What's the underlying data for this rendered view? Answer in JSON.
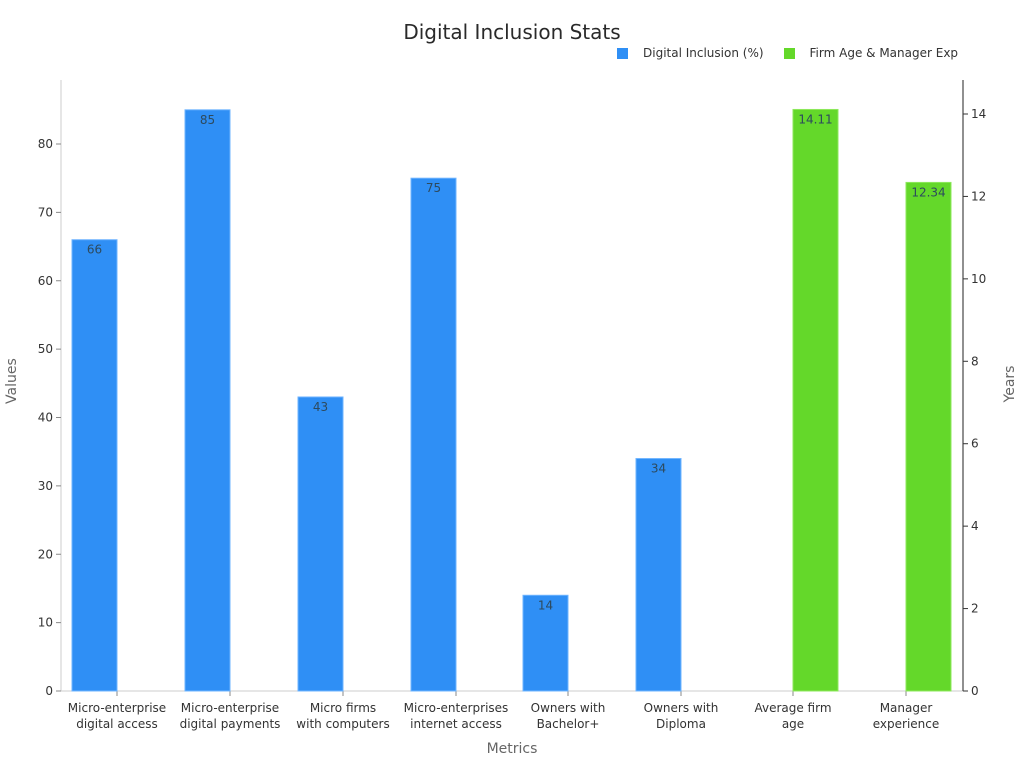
{
  "chart_data": {
    "type": "bar",
    "title": "Digital Inclusion Stats",
    "xlabel": "Metrics",
    "ylabel": "Values",
    "ylabel_right": "Years",
    "categories": [
      "Micro-enterprise digital access",
      "Micro-enterprise digital payments",
      "Micro firms with computers",
      "Micro-enterprises internet access",
      "Owners with Bachelor+",
      "Owners with Diploma",
      "Average firm age",
      "Manager experience"
    ],
    "category_lines": [
      [
        "Micro-enterprise",
        "digital access"
      ],
      [
        "Micro-enterprise",
        "digital payments"
      ],
      [
        "Micro firms",
        "with computers"
      ],
      [
        "Micro-enterprises",
        "internet access"
      ],
      [
        "Owners with",
        "Bachelor+"
      ],
      [
        "Owners with",
        "Diploma"
      ],
      [
        "Average firm",
        "age"
      ],
      [
        "Manager",
        "experience"
      ]
    ],
    "series": [
      {
        "name": "Digital Inclusion (%)",
        "axis": "left",
        "color": "#2f8ff5",
        "values": [
          66,
          85,
          43,
          75,
          14,
          34,
          null,
          null
        ],
        "labels": [
          "66",
          "85",
          "43",
          "75",
          "14",
          "34",
          null,
          null
        ]
      },
      {
        "name": "Firm Age & Manager Exp",
        "axis": "right",
        "color": "#64d82a",
        "values": [
          null,
          null,
          null,
          null,
          null,
          null,
          14.11,
          12.34
        ],
        "labels": [
          null,
          null,
          null,
          null,
          null,
          null,
          "14.11",
          "12.34"
        ]
      }
    ],
    "ylim": [
      0,
      89.5
    ],
    "ylim_right": [
      0,
      14.8
    ],
    "yticks": [
      0,
      10,
      20,
      30,
      40,
      50,
      60,
      70,
      80
    ],
    "yticks_right": [
      0,
      2,
      4,
      6,
      8,
      10,
      12,
      14
    ],
    "grid": false,
    "legend_position": "top-right"
  }
}
